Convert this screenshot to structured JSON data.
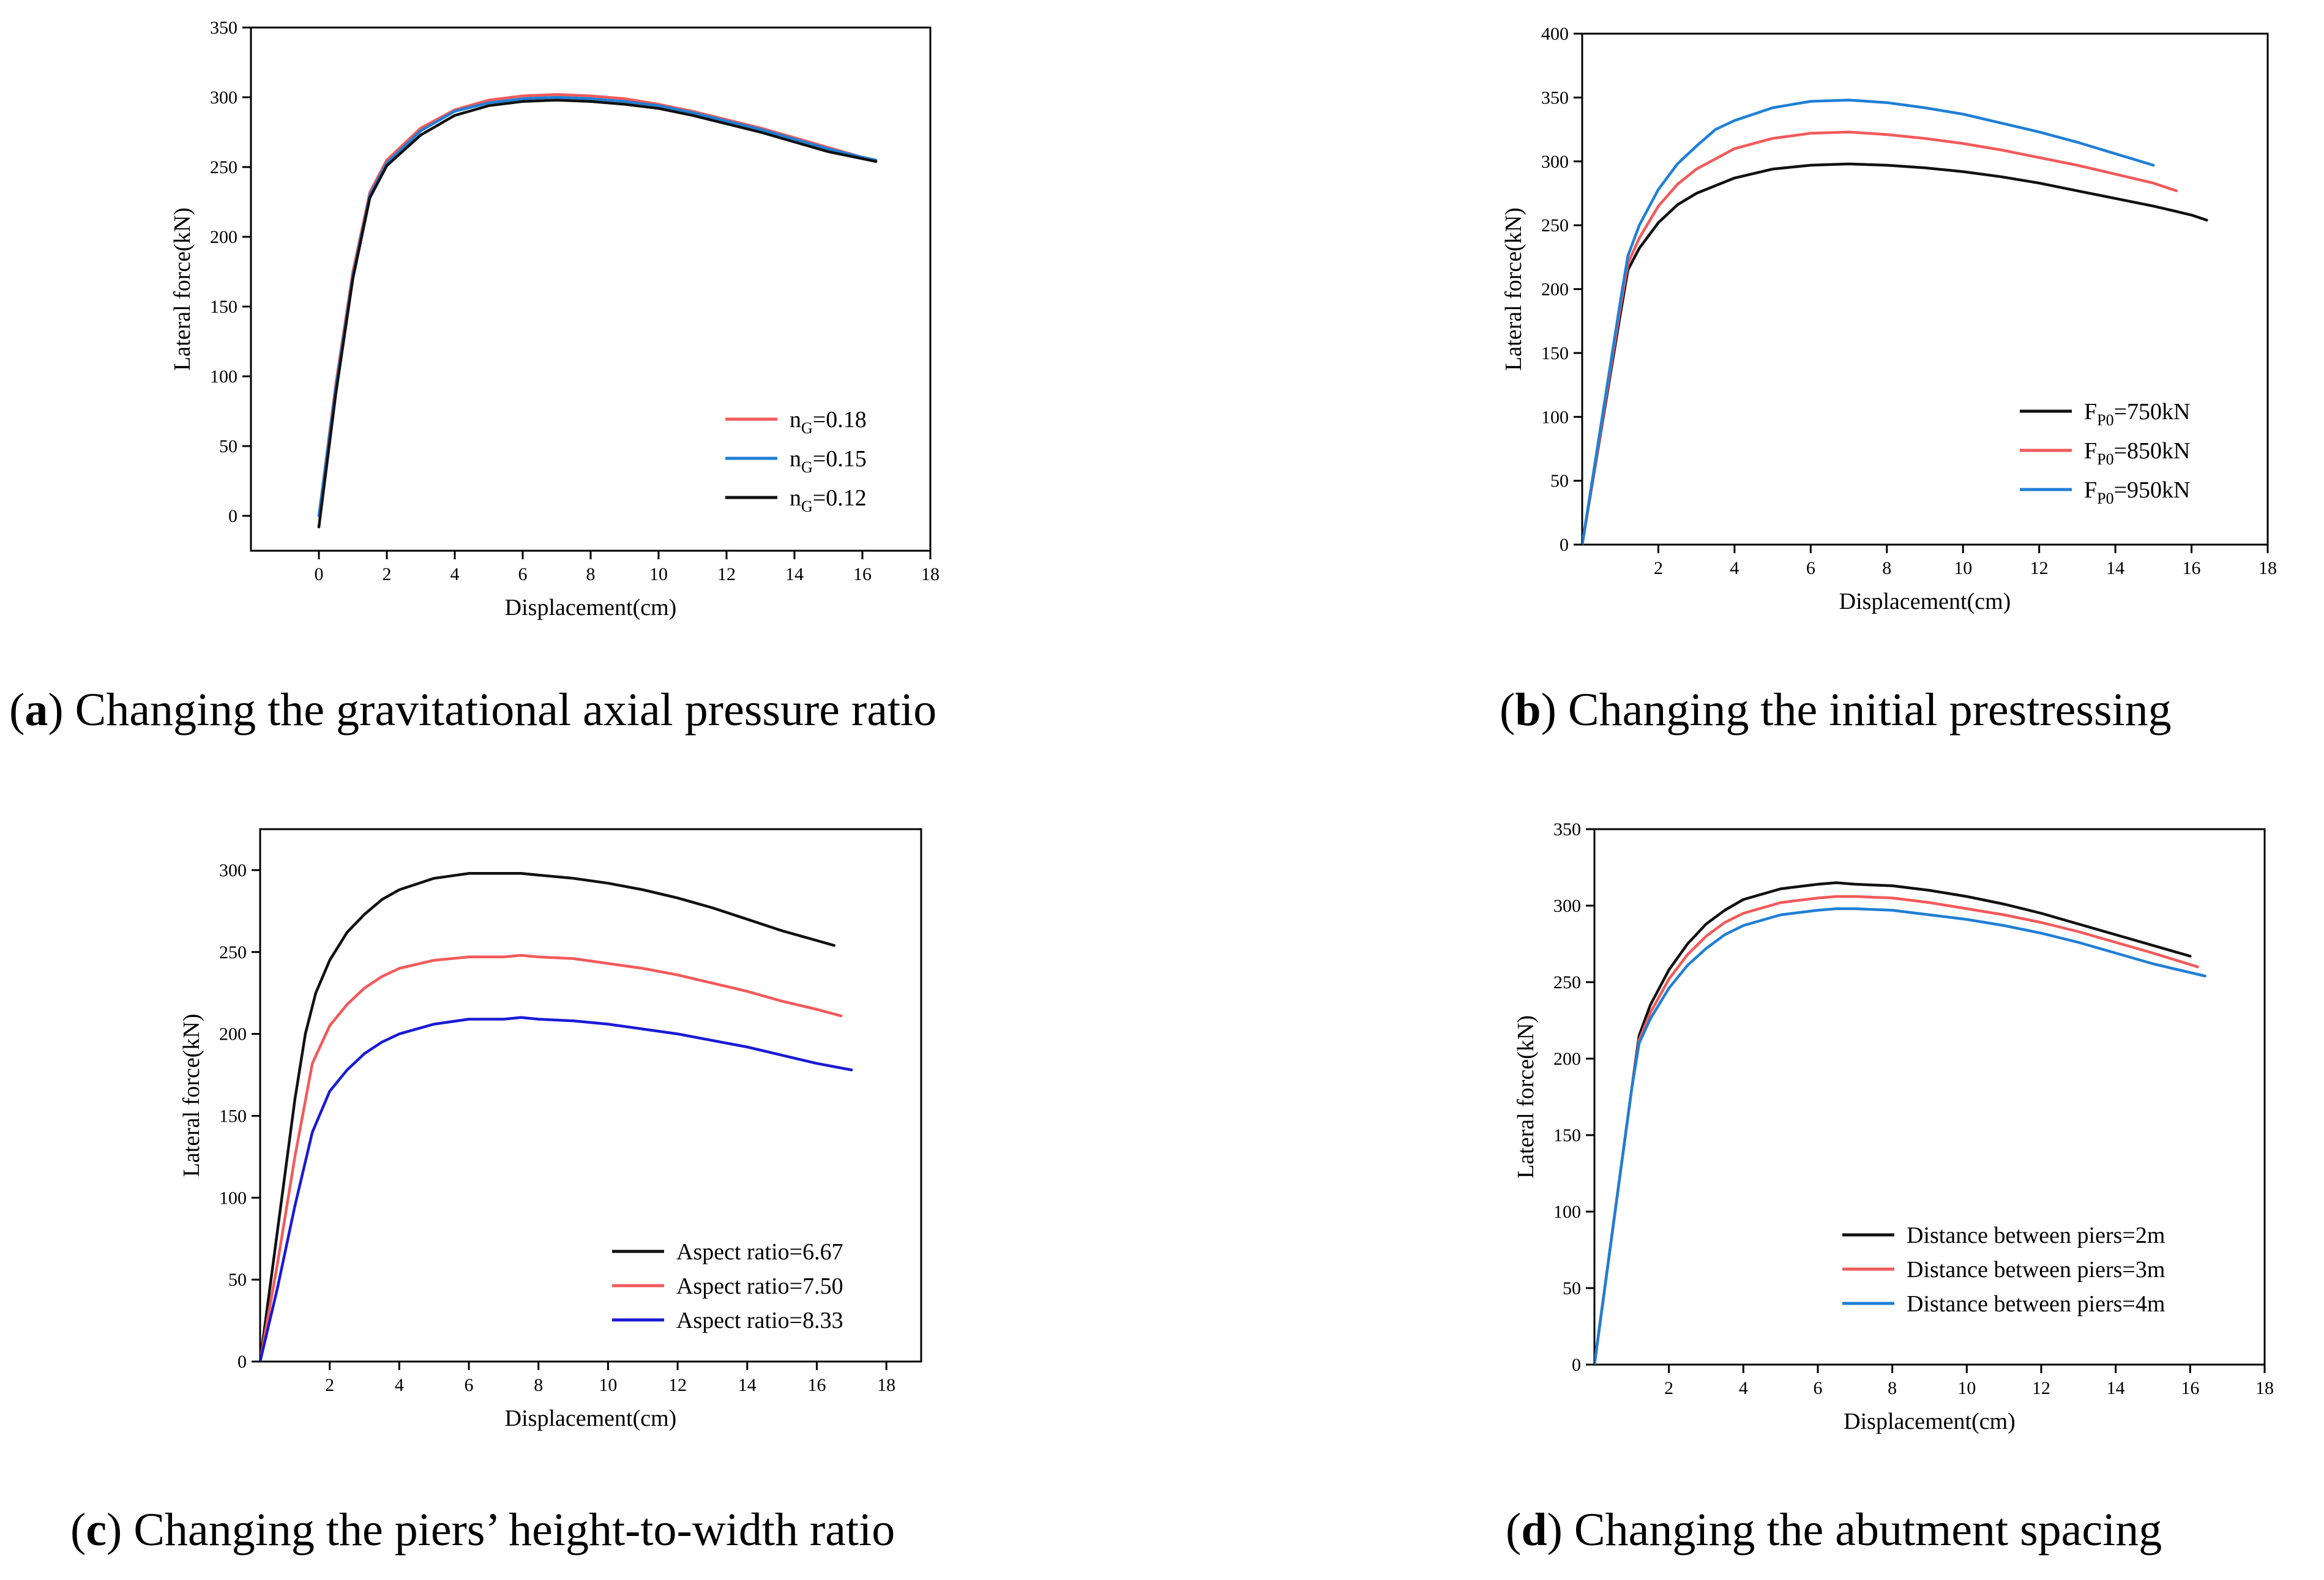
{
  "colors": {
    "red": "#f25a5a",
    "blue": "#1f7fd6",
    "black": "#111111",
    "navy": "#1a1ad6"
  },
  "chart_data": [
    {
      "type": "line",
      "id": "a",
      "caption_letter": "a",
      "caption_text": " Changing the gravitational axial pressure ratio",
      "xlabel": "Displacement(cm)",
      "ylabel": "Lateral force(kN)",
      "xlim": [
        -2,
        18
      ],
      "ylim": [
        -25,
        350
      ],
      "xticks": [
        0,
        2,
        4,
        6,
        8,
        10,
        12,
        14,
        16,
        18
      ],
      "yticks": [
        0,
        50,
        100,
        150,
        200,
        250,
        300,
        350
      ],
      "legend_position": "bottom-right",
      "series": [
        {
          "name": "nG=0.18",
          "label_main": "n",
          "label_sub": "G",
          "label_rest": "=0.18",
          "color": "#f25a5a",
          "x": [
            0,
            0.5,
            1,
            1.5,
            2,
            3,
            4,
            5,
            6,
            7,
            8,
            9,
            10,
            11,
            12,
            13,
            14,
            15,
            16,
            16.4
          ],
          "y": [
            0,
            95,
            175,
            232,
            255,
            278,
            291,
            298,
            301,
            302,
            301,
            299,
            295,
            290,
            284,
            278,
            271,
            264,
            257,
            254
          ]
        },
        {
          "name": "nG=0.15",
          "label_main": "n",
          "label_sub": "G",
          "label_rest": "=0.15",
          "color": "#1f7fd6",
          "x": [
            0,
            0.5,
            1,
            1.5,
            2,
            3,
            4,
            5,
            6,
            7,
            8,
            9,
            10,
            11,
            12,
            13,
            14,
            15,
            16,
            16.4
          ],
          "y": [
            0,
            92,
            172,
            230,
            253,
            276,
            290,
            296,
            299,
            300,
            299,
            297,
            294,
            289,
            283,
            277,
            270,
            263,
            257,
            255
          ]
        },
        {
          "name": "nG=0.12",
          "label_main": "n",
          "label_sub": "G",
          "label_rest": "=0.12",
          "color": "#111111",
          "x": [
            0,
            0.5,
            1,
            1.5,
            2,
            3,
            4,
            5,
            6,
            7,
            8,
            9,
            10,
            11,
            12,
            13,
            14,
            15,
            16,
            16.4
          ],
          "y": [
            -8,
            88,
            170,
            228,
            251,
            273,
            287,
            294,
            297,
            298,
            297,
            295,
            292,
            287,
            281,
            275,
            268,
            261,
            256,
            254
          ]
        }
      ]
    },
    {
      "type": "line",
      "id": "b",
      "caption_letter": "b",
      "caption_text": " Changing the initial prestressing",
      "xlabel": "Displacement(cm)",
      "ylabel": "Lateral force(kN)",
      "xlim": [
        0,
        18
      ],
      "ylim": [
        0,
        400
      ],
      "xticks": [
        2,
        4,
        6,
        8,
        10,
        12,
        14,
        16,
        18
      ],
      "yticks": [
        0,
        50,
        100,
        150,
        200,
        250,
        300,
        350,
        400
      ],
      "legend_position": "bottom-right",
      "series": [
        {
          "name": "FP0=750kN",
          "label_main": "F",
          "label_sub": "P0",
          "label_rest": "=750kN",
          "color": "#111111",
          "x": [
            0,
            0.5,
            1,
            1.2,
            1.5,
            2,
            2.5,
            3,
            4,
            5,
            6,
            7,
            8,
            9,
            10,
            11,
            12,
            13,
            14,
            15,
            16,
            16.4
          ],
          "y": [
            0,
            90,
            180,
            215,
            232,
            252,
            266,
            275,
            287,
            294,
            297,
            298,
            297,
            295,
            292,
            288,
            283,
            277,
            271,
            265,
            258,
            254
          ]
        },
        {
          "name": "FP0=850kN",
          "label_main": "F",
          "label_sub": "P0",
          "label_rest": "=850kN",
          "color": "#f25a5a",
          "x": [
            0,
            0.5,
            1,
            1.2,
            1.5,
            2,
            2.5,
            3,
            4,
            5,
            6,
            7,
            8,
            9,
            10,
            11,
            12,
            13,
            14,
            15,
            15.6
          ],
          "y": [
            0,
            92,
            185,
            220,
            240,
            265,
            282,
            294,
            310,
            318,
            322,
            323,
            321,
            318,
            314,
            309,
            303,
            297,
            290,
            283,
            277
          ]
        },
        {
          "name": "FP0=950kN",
          "label_main": "F",
          "label_sub": "P0",
          "label_rest": "=950kN",
          "color": "#1f7fd6",
          "x": [
            0,
            0.5,
            1,
            1.2,
            1.5,
            2,
            2.5,
            3,
            3.5,
            4,
            5,
            6,
            7,
            8,
            9,
            10,
            11,
            12,
            13,
            14,
            15
          ],
          "y": [
            0,
            95,
            190,
            226,
            250,
            278,
            298,
            312,
            325,
            332,
            342,
            347,
            348,
            346,
            342,
            337,
            330,
            323,
            315,
            306,
            297
          ]
        }
      ]
    },
    {
      "type": "line",
      "id": "c",
      "caption_letter": "c",
      "caption_text": " Changing the piers’ height-to-width ratio",
      "xlabel": "Displacement(cm)",
      "ylabel": "Lateral force(kN)",
      "xlim": [
        0,
        19
      ],
      "ylim": [
        0,
        325
      ],
      "xticks": [
        2,
        4,
        6,
        8,
        10,
        12,
        14,
        16,
        18
      ],
      "yticks": [
        0,
        50,
        100,
        150,
        200,
        250,
        300
      ],
      "legend_position": "bottom-right",
      "series": [
        {
          "name": "Aspect ratio=6.67",
          "label_main": "Aspect ratio=6.67",
          "color": "#111111",
          "x": [
            0,
            0.5,
            1,
            1.3,
            1.6,
            2,
            2.5,
            3,
            3.5,
            4,
            5,
            6,
            7,
            7.5,
            8,
            9,
            10,
            11,
            12,
            13,
            14,
            15,
            16,
            16.5
          ],
          "y": [
            0,
            80,
            160,
            200,
            225,
            245,
            262,
            273,
            282,
            288,
            295,
            298,
            298,
            298,
            297,
            295,
            292,
            288,
            283,
            277,
            270,
            263,
            257,
            254
          ]
        },
        {
          "name": "Aspect ratio=7.50",
          "label_main": "Aspect ratio=7.50",
          "color": "#f25a5a",
          "x": [
            0,
            0.5,
            1,
            1.5,
            2,
            2.5,
            3,
            3.5,
            4,
            5,
            6,
            7,
            7.5,
            8,
            9,
            10,
            11,
            12,
            13,
            14,
            15,
            16,
            16.7
          ],
          "y": [
            0,
            60,
            125,
            182,
            205,
            218,
            228,
            235,
            240,
            245,
            247,
            247,
            248,
            247,
            246,
            243,
            240,
            236,
            231,
            226,
            220,
            215,
            211
          ]
        },
        {
          "name": "Aspect ratio=8.33",
          "label_main": "Aspect ratio=8.33",
          "color": "#1a1ad6",
          "x": [
            0,
            0.5,
            1,
            1.5,
            2,
            2.5,
            3,
            3.5,
            4,
            5,
            6,
            7,
            7.5,
            8,
            9,
            10,
            11,
            12,
            13,
            14,
            15,
            16,
            17
          ],
          "y": [
            0,
            45,
            95,
            140,
            165,
            178,
            188,
            195,
            200,
            206,
            209,
            209,
            210,
            209,
            208,
            206,
            203,
            200,
            196,
            192,
            187,
            182,
            178
          ]
        }
      ]
    },
    {
      "type": "line",
      "id": "d",
      "caption_letter": "d",
      "caption_text": " Changing the abutment spacing",
      "xlabel": "Displacement(cm)",
      "ylabel": "Lateral force(kN)",
      "xlim": [
        0,
        18
      ],
      "ylim": [
        0,
        350
      ],
      "xticks": [
        2,
        4,
        6,
        8,
        10,
        12,
        14,
        16,
        18
      ],
      "yticks": [
        0,
        50,
        100,
        150,
        200,
        250,
        300,
        350
      ],
      "legend_position": "bottom-right",
      "series": [
        {
          "name": "Distance between piers=2m",
          "label_main": "Distance between piers=2m",
          "color": "#111111",
          "x": [
            0,
            0.5,
            1,
            1.2,
            1.5,
            2,
            2.5,
            3,
            3.5,
            4,
            5,
            6,
            6.5,
            7,
            8,
            9,
            10,
            11,
            12,
            13,
            14,
            15,
            16
          ],
          "y": [
            0,
            90,
            180,
            215,
            235,
            258,
            275,
            288,
            297,
            304,
            311,
            314,
            315,
            314,
            313,
            310,
            306,
            301,
            295,
            288,
            281,
            274,
            267
          ]
        },
        {
          "name": "Distance between piers=3m",
          "label_main": "Distance between piers=3m",
          "color": "#f25a5a",
          "x": [
            0,
            0.5,
            1,
            1.2,
            1.5,
            2,
            2.5,
            3,
            3.5,
            4,
            5,
            6,
            6.5,
            7,
            8,
            9,
            10,
            11,
            12,
            13,
            14,
            15,
            16.2
          ],
          "y": [
            0,
            90,
            180,
            212,
            230,
            252,
            268,
            280,
            289,
            295,
            302,
            305,
            306,
            306,
            305,
            302,
            298,
            294,
            289,
            283,
            276,
            269,
            260
          ]
        },
        {
          "name": "Distance between piers=4m",
          "label_main": "Distance between piers=4m",
          "color": "#1f7fd6",
          "x": [
            0,
            0.5,
            1,
            1.2,
            1.5,
            2,
            2.5,
            3,
            3.5,
            4,
            5,
            6,
            6.5,
            7,
            8,
            9,
            10,
            11,
            12,
            13,
            14,
            15,
            16.4
          ],
          "y": [
            0,
            90,
            180,
            210,
            226,
            246,
            261,
            272,
            281,
            287,
            294,
            297,
            298,
            298,
            297,
            294,
            291,
            287,
            282,
            276,
            269,
            262,
            254
          ]
        }
      ]
    }
  ]
}
